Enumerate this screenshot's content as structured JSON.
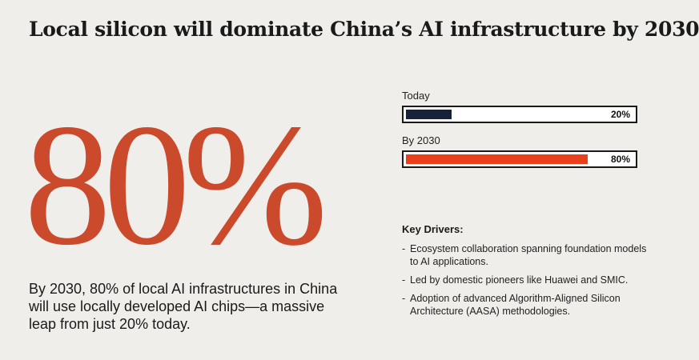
{
  "title": "Local silicon will dominate China’s AI infrastructure by 2030",
  "big_stat": "80%",
  "summary": "By 2030, 80% of local AI infrastructures in China will use locally developed AI chips—a massive leap from just 20% today.",
  "colors": {
    "today_bar": "#16223a",
    "future_bar": "#e8401c",
    "accent": "#cc4a2c"
  },
  "chart_data": {
    "type": "bar",
    "orientation": "horizontal",
    "categories": [
      "Today",
      "By 2030"
    ],
    "values": [
      20,
      80
    ],
    "value_labels": [
      "20%",
      "80%"
    ],
    "xlim": [
      0,
      100
    ],
    "grid": false
  },
  "drivers": {
    "title": "Key Drivers:",
    "items": [
      "Ecosystem collaboration spanning foundation models to AI applications.",
      "Led by domestic pioneers like Huawei and SMIC.",
      "Adoption of advanced Algorithm-Aligned Silicon Architecture (AASA) methodologies."
    ]
  }
}
